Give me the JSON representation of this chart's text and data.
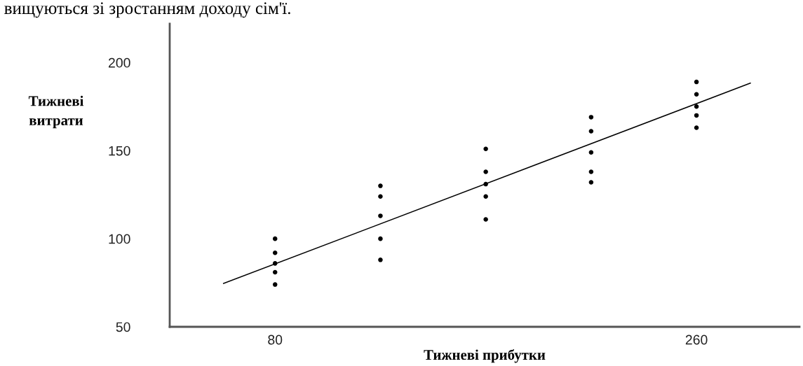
{
  "chart_data": {
    "type": "scatter",
    "xlabel": "Тижневі прибутки",
    "ylabel": "Тижневі\nвитрати",
    "annotations": [
      "вищуються зі зростанням доходу сім'ї."
    ],
    "xlim": [
      35,
      304
    ],
    "ylim": [
      50,
      222
    ],
    "xticks": [
      80,
      260
    ],
    "yticks": [
      50,
      100,
      150,
      200
    ],
    "grid": false,
    "legend": false,
    "series": [
      {
        "marker": "circle",
        "color": "#000000",
        "x": [
          80,
          80,
          80,
          80,
          80,
          125,
          125,
          125,
          125,
          125,
          170,
          170,
          170,
          170,
          170,
          215,
          215,
          215,
          215,
          215,
          260,
          260,
          260,
          260,
          260
        ],
        "values": [
          100,
          92,
          86,
          81,
          74,
          130,
          124,
          113,
          100,
          88,
          151,
          138,
          131,
          124,
          111,
          169,
          161,
          149,
          138,
          132,
          189,
          182,
          175,
          170,
          163
        ]
      },
      {
        "type": "line",
        "marker": "none",
        "color": "#000000",
        "line_style": "solid",
        "x": [
          58,
          283
        ],
        "values": [
          74.6,
          188.3
        ]
      }
    ]
  }
}
